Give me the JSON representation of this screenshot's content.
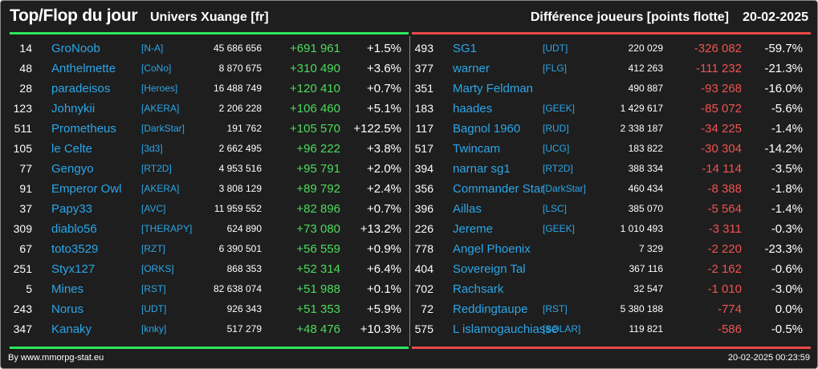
{
  "header": {
    "title": "Top/Flop du jour",
    "universe": "Univers Xuange [fr]",
    "metric": "Différence joueurs [points flotte]",
    "date": "20-02-2025"
  },
  "top": [
    {
      "rank": "14",
      "name": "GroNoob",
      "guild": "[N-A]",
      "score": "45 686 656",
      "diff": "+691 961",
      "pct": "+1.5%"
    },
    {
      "rank": "48",
      "name": "Anthelmette",
      "guild": "[CoNo]",
      "score": "8 870 675",
      "diff": "+310 490",
      "pct": "+3.6%"
    },
    {
      "rank": "28",
      "name": "paradeisos",
      "guild": "[Heroes]",
      "score": "16 488 749",
      "diff": "+120 410",
      "pct": "+0.7%"
    },
    {
      "rank": "123",
      "name": "Johnykii",
      "guild": "[AKERA]",
      "score": "2 206 228",
      "diff": "+106 460",
      "pct": "+5.1%"
    },
    {
      "rank": "511",
      "name": "Prometheus",
      "guild": "[DarkStar]",
      "score": "191 762",
      "diff": "+105 570",
      "pct": "+122.5%"
    },
    {
      "rank": "105",
      "name": "le Celte",
      "guild": "[3d3]",
      "score": "2 662 495",
      "diff": "+96 222",
      "pct": "+3.8%"
    },
    {
      "rank": "77",
      "name": "Gengyo",
      "guild": "[RT2D]",
      "score": "4 953 516",
      "diff": "+95 791",
      "pct": "+2.0%"
    },
    {
      "rank": "91",
      "name": "Emperor Owl",
      "guild": "[AKERA]",
      "score": "3 808 129",
      "diff": "+89 792",
      "pct": "+2.4%"
    },
    {
      "rank": "37",
      "name": "Papy33",
      "guild": "[AVC]",
      "score": "11 959 552",
      "diff": "+82 896",
      "pct": "+0.7%"
    },
    {
      "rank": "309",
      "name": "diablo56",
      "guild": "[THERAPY]",
      "score": "624 890",
      "diff": "+73 080",
      "pct": "+13.2%"
    },
    {
      "rank": "67",
      "name": "toto3529",
      "guild": "[RZT]",
      "score": "6 390 501",
      "diff": "+56 559",
      "pct": "+0.9%"
    },
    {
      "rank": "251",
      "name": "Styx127",
      "guild": "[ORKS]",
      "score": "868 353",
      "diff": "+52 314",
      "pct": "+6.4%"
    },
    {
      "rank": "5",
      "name": "Mines",
      "guild": "[RST]",
      "score": "82 638 074",
      "diff": "+51 988",
      "pct": "+0.1%"
    },
    {
      "rank": "243",
      "name": "Norus",
      "guild": "[UDT]",
      "score": "926 343",
      "diff": "+51 353",
      "pct": "+5.9%"
    },
    {
      "rank": "347",
      "name": "Kanaky",
      "guild": "[knky]",
      "score": "517 279",
      "diff": "+48 476",
      "pct": "+10.3%"
    }
  ],
  "flop": [
    {
      "rank": "493",
      "name": "SG1",
      "guild": "[UDT]",
      "score": "220 029",
      "diff": "-326 082",
      "pct": "-59.7%"
    },
    {
      "rank": "377",
      "name": "warner",
      "guild": "[FLG]",
      "score": "412 263",
      "diff": "-111 232",
      "pct": "-21.3%"
    },
    {
      "rank": "351",
      "name": "Marty Feldman",
      "guild": "",
      "score": "490 887",
      "diff": "-93 268",
      "pct": "-16.0%"
    },
    {
      "rank": "183",
      "name": "haades",
      "guild": "[GEEK]",
      "score": "1 429 617",
      "diff": "-85 072",
      "pct": "-5.6%"
    },
    {
      "rank": "117",
      "name": "Bagnol 1960",
      "guild": "[RUD]",
      "score": "2 338 187",
      "diff": "-34 225",
      "pct": "-1.4%"
    },
    {
      "rank": "517",
      "name": "Twincam",
      "guild": "[UCG]",
      "score": "183 822",
      "diff": "-30 304",
      "pct": "-14.2%"
    },
    {
      "rank": "394",
      "name": "narnar sg1",
      "guild": "[RT2D]",
      "score": "388 334",
      "diff": "-14 114",
      "pct": "-3.5%"
    },
    {
      "rank": "356",
      "name": "Commander Star",
      "guild": "[DarkStar]",
      "score": "460 434",
      "diff": "-8 388",
      "pct": "-1.8%"
    },
    {
      "rank": "396",
      "name": "Aillas",
      "guild": "[LSC]",
      "score": "385 070",
      "diff": "-5 564",
      "pct": "-1.4%"
    },
    {
      "rank": "226",
      "name": "Jereme",
      "guild": "[GEEK]",
      "score": "1 010 493",
      "diff": "-3 311",
      "pct": "-0.3%"
    },
    {
      "rank": "778",
      "name": "Angel Phoenix",
      "guild": "",
      "score": "7 329",
      "diff": "-2 220",
      "pct": "-23.3%"
    },
    {
      "rank": "404",
      "name": "Sovereign Tal",
      "guild": "",
      "score": "367 116",
      "diff": "-2 162",
      "pct": "-0.6%"
    },
    {
      "rank": "702",
      "name": "Rachsark",
      "guild": "",
      "score": "32 547",
      "diff": "-1 010",
      "pct": "-3.0%"
    },
    {
      "rank": "72",
      "name": "Reddingtaupe",
      "guild": "[RST]",
      "score": "5 380 188",
      "diff": "-774",
      "pct": "0.0%"
    },
    {
      "rank": "575",
      "name": "L islamogauchiasse",
      "guild": "[SOLAR]",
      "score": "119 821",
      "diff": "-586",
      "pct": "-0.5%"
    }
  ],
  "footer": {
    "credit": "By www.mmorpg-stat.eu",
    "timestamp": "20-02-2025 00:23:59"
  },
  "colors": {
    "background": "#1e1e1e",
    "top_accent": "#2ee65a",
    "flop_accent": "#e84a4a",
    "link": "#2ba6e8"
  }
}
